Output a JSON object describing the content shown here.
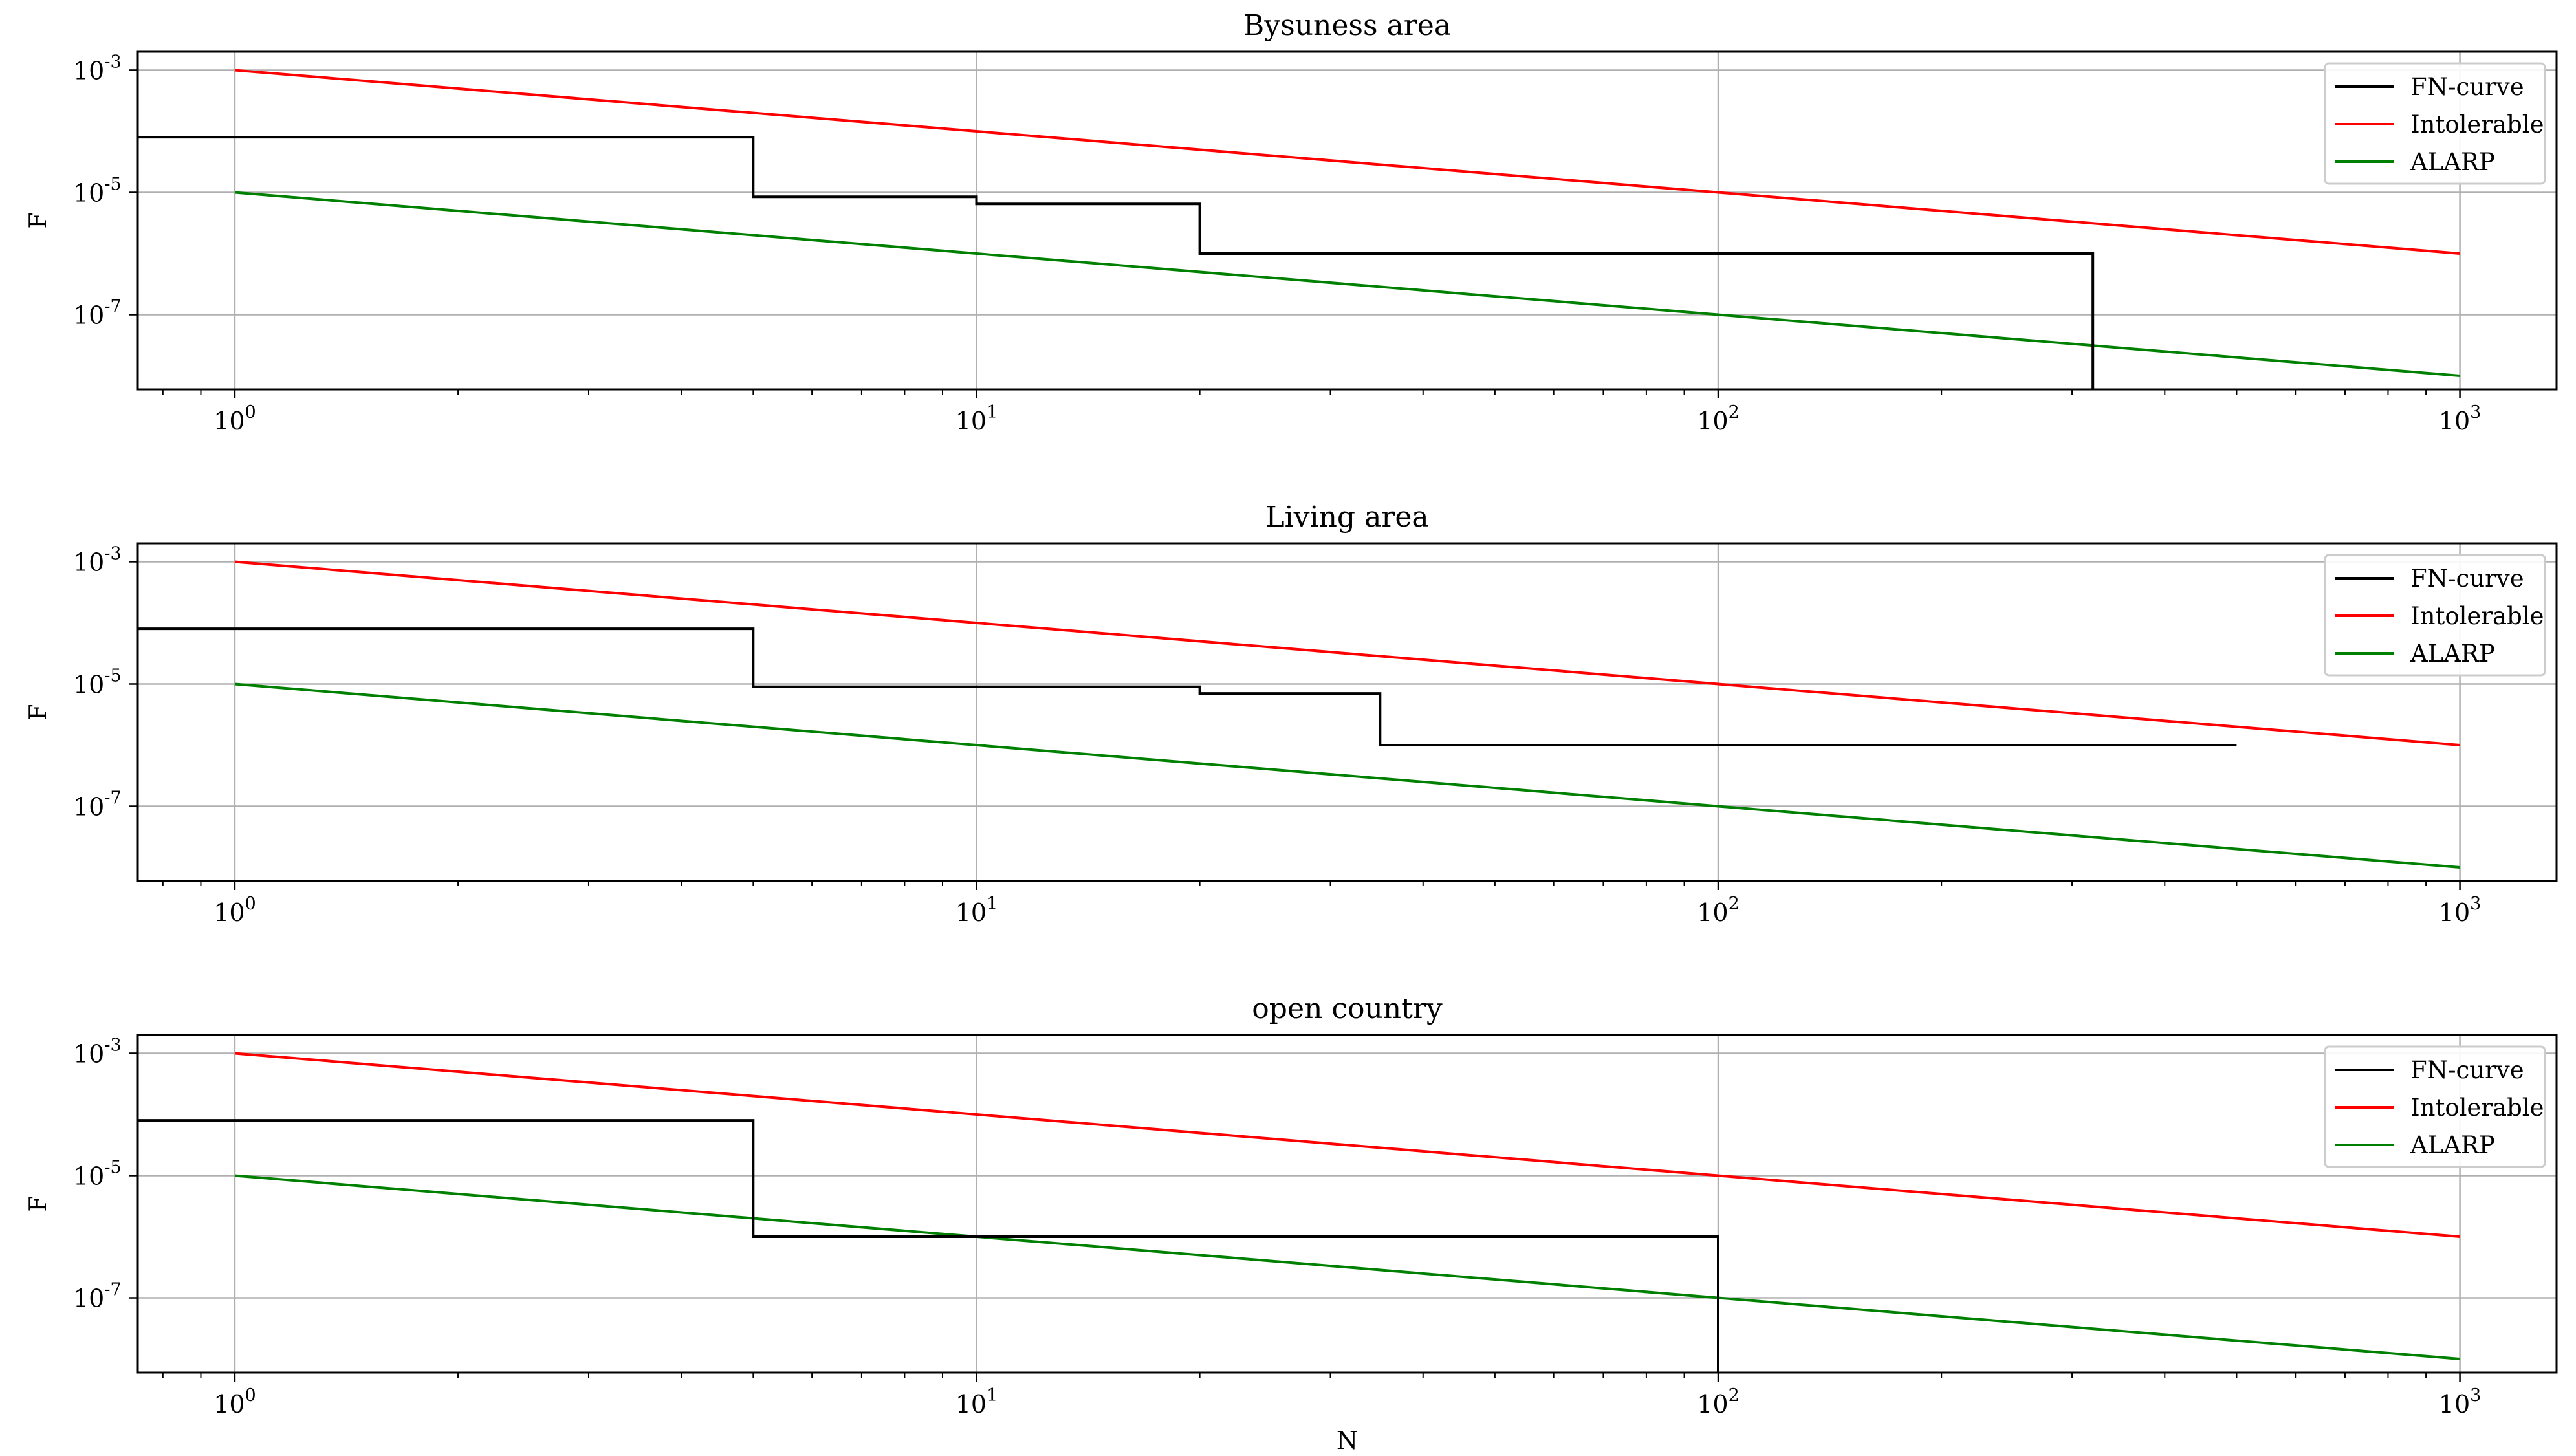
{
  "colors": {
    "fn_curve": "#000000",
    "intolerable": "#ff0000",
    "alarp": "#008000",
    "grid": "#b0b0b0",
    "legend_border": "#cccccc"
  },
  "chart_data": [
    {
      "type": "line",
      "title": "Bysuness area",
      "xlabel": "",
      "ylabel": "F",
      "xscale": "log",
      "yscale": "log",
      "xlim": [
        0.74,
        1350
      ],
      "ylim": [
        6e-09,
        0.002
      ],
      "x_ticks": [
        {
          "value": 1,
          "label": "10^0"
        },
        {
          "value": 10,
          "label": "10^1"
        },
        {
          "value": 100,
          "label": "10^2"
        },
        {
          "value": 1000,
          "label": "10^3"
        }
      ],
      "y_ticks": [
        {
          "value": 0.001,
          "label": "10^-3"
        },
        {
          "value": 1e-05,
          "label": "10^-5"
        },
        {
          "value": 1e-07,
          "label": "10^-7"
        }
      ],
      "grid": true,
      "legend_position": "top-right",
      "series": [
        {
          "name": "FN-curve",
          "color_key": "fn_curve",
          "step": true,
          "x": [
            0.74,
            5,
            5,
            10,
            10,
            20,
            20,
            320,
            320
          ],
          "y": [
            8e-05,
            8e-05,
            8.5e-06,
            8.5e-06,
            6.5e-06,
            6.5e-06,
            1e-06,
            1e-06,
            6e-09
          ]
        },
        {
          "name": "Intolerable",
          "color_key": "intolerable",
          "x": [
            1,
            1000
          ],
          "y": [
            0.001,
            1e-06
          ]
        },
        {
          "name": "ALARP",
          "color_key": "alarp",
          "x": [
            1,
            1000
          ],
          "y": [
            1e-05,
            1e-08
          ]
        }
      ]
    },
    {
      "type": "line",
      "title": "Living area",
      "xlabel": "",
      "ylabel": "F",
      "xscale": "log",
      "yscale": "log",
      "xlim": [
        0.74,
        1350
      ],
      "ylim": [
        6e-09,
        0.002
      ],
      "x_ticks": [
        {
          "value": 1,
          "label": "10^0"
        },
        {
          "value": 10,
          "label": "10^1"
        },
        {
          "value": 100,
          "label": "10^2"
        },
        {
          "value": 1000,
          "label": "10^3"
        }
      ],
      "y_ticks": [
        {
          "value": 0.001,
          "label": "10^-3"
        },
        {
          "value": 1e-05,
          "label": "10^-5"
        },
        {
          "value": 1e-07,
          "label": "10^-7"
        }
      ],
      "grid": true,
      "legend_position": "top-right",
      "series": [
        {
          "name": "FN-curve",
          "color_key": "fn_curve",
          "step": true,
          "x": [
            0.74,
            5,
            5,
            20,
            20,
            35,
            35,
            500
          ],
          "y": [
            8e-05,
            8e-05,
            9e-06,
            9e-06,
            7e-06,
            7e-06,
            1e-06,
            1e-06
          ]
        },
        {
          "name": "Intolerable",
          "color_key": "intolerable",
          "x": [
            1,
            1000
          ],
          "y": [
            0.001,
            1e-06
          ]
        },
        {
          "name": "ALARP",
          "color_key": "alarp",
          "x": [
            1,
            1000
          ],
          "y": [
            1e-05,
            1e-08
          ]
        }
      ]
    },
    {
      "type": "line",
      "title": "open country",
      "xlabel": "N",
      "ylabel": "F",
      "xscale": "log",
      "yscale": "log",
      "xlim": [
        0.74,
        1350
      ],
      "ylim": [
        6e-09,
        0.002
      ],
      "x_ticks": [
        {
          "value": 1,
          "label": "10^0"
        },
        {
          "value": 10,
          "label": "10^1"
        },
        {
          "value": 100,
          "label": "10^2"
        },
        {
          "value": 1000,
          "label": "10^3"
        }
      ],
      "y_ticks": [
        {
          "value": 0.001,
          "label": "10^-3"
        },
        {
          "value": 1e-05,
          "label": "10^-5"
        },
        {
          "value": 1e-07,
          "label": "10^-7"
        }
      ],
      "grid": true,
      "legend_position": "top-right",
      "series": [
        {
          "name": "FN-curve",
          "color_key": "fn_curve",
          "step": true,
          "x": [
            0.74,
            5,
            5,
            100,
            100
          ],
          "y": [
            8e-05,
            8e-05,
            1e-06,
            1e-06,
            6e-09
          ]
        },
        {
          "name": "Intolerable",
          "color_key": "intolerable",
          "x": [
            1,
            1000
          ],
          "y": [
            0.001,
            1e-06
          ]
        },
        {
          "name": "ALARP",
          "color_key": "alarp",
          "x": [
            1,
            1000
          ],
          "y": [
            1e-05,
            1e-08
          ]
        }
      ]
    }
  ]
}
